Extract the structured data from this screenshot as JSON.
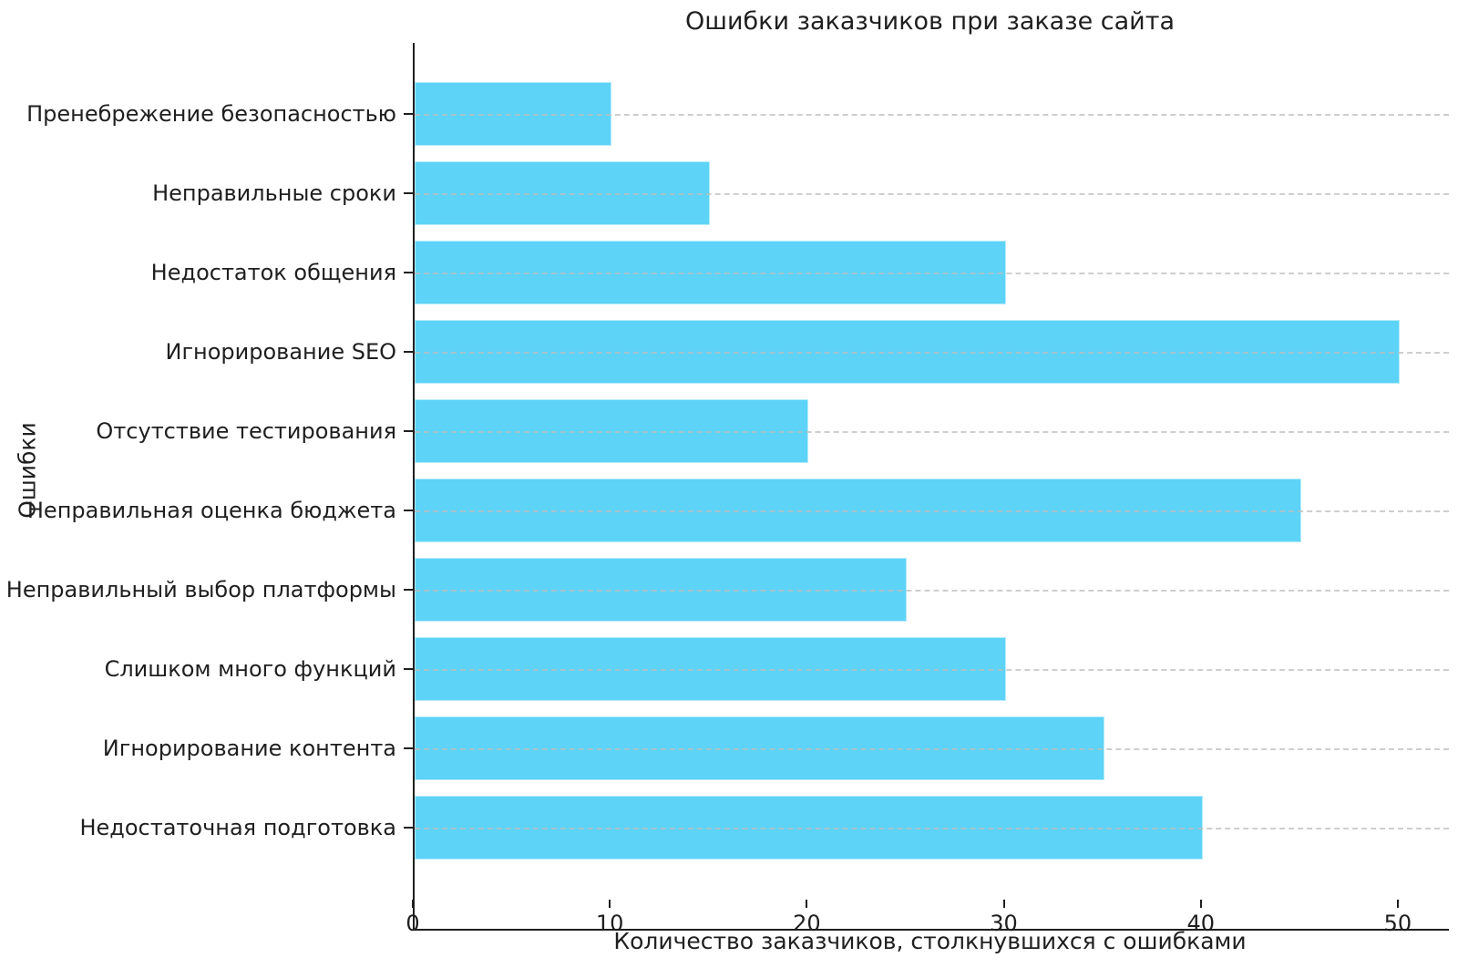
{
  "chart_data": {
    "type": "bar",
    "orientation": "horizontal",
    "title": "Ошибки заказчиков при заказе сайта",
    "xlabel": "Количество заказчиков, столкнувшихся с ошибками",
    "ylabel": "Ошибки",
    "categories": [
      "Пренебрежение безопасностью",
      "Неправильные сроки",
      "Недостаток общения",
      "Игнорирование SEO",
      "Отсутствие тестирования",
      "Неправильная оценка бюджета",
      "Неправильный выбор платформы",
      "Слишком много функций",
      "Игнорирование контента",
      "Недостаточная подготовка"
    ],
    "values": [
      10,
      15,
      30,
      50,
      20,
      45,
      25,
      30,
      35,
      40
    ],
    "xticks": [
      0,
      10,
      20,
      30,
      40,
      50
    ],
    "xlim": [
      0,
      52.5
    ],
    "grid": "horizontal dashed, drawn over bars",
    "legend": "none",
    "bar_color": "#5dd3f7",
    "grid_color": "#bebebe",
    "text_color": "#1f1f1f",
    "background_color": "#ffffff"
  }
}
